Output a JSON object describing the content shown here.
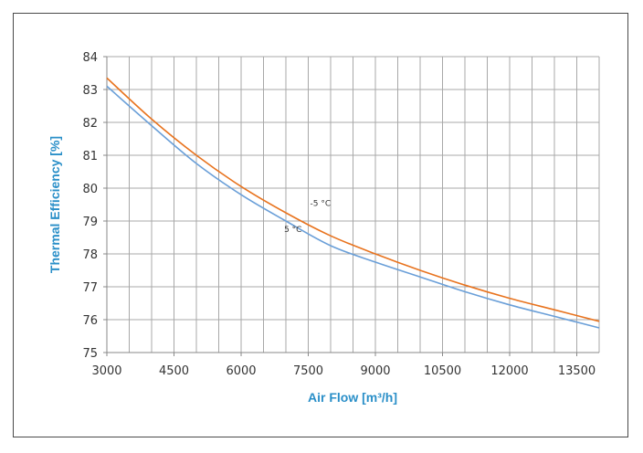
{
  "chart_data": {
    "type": "line",
    "title": "",
    "xlabel": "Air Flow [m³/h]",
    "ylabel": "Thermal Efficiency [%]",
    "xlim": [
      3000,
      14000
    ],
    "ylim": [
      75,
      84
    ],
    "x_ticks": [
      "3000",
      "4500",
      "6000",
      "7500",
      "9000",
      "10500",
      "12000",
      "13500"
    ],
    "y_ticks": [
      "75",
      "76",
      "77",
      "78",
      "79",
      "80",
      "81",
      "82",
      "83",
      "84"
    ],
    "grid": true,
    "series": [
      {
        "name": "-5 °C",
        "color": "#e8731e",
        "x": [
          3000,
          4000,
          5000,
          6000,
          7000,
          8000,
          9000,
          10000,
          11000,
          12000,
          13000,
          14000
        ],
        "y": [
          83.35,
          82.1,
          81.0,
          80.05,
          79.25,
          78.55,
          78.0,
          77.5,
          77.05,
          76.65,
          76.3,
          75.95
        ]
      },
      {
        "name": "5 °C",
        "color": "#6a9fd8",
        "x": [
          3000,
          4000,
          5000,
          6000,
          7000,
          8000,
          9000,
          10000,
          11000,
          12000,
          13000,
          14000
        ],
        "y": [
          83.1,
          81.9,
          80.75,
          79.8,
          79.0,
          78.25,
          77.75,
          77.3,
          76.85,
          76.45,
          76.1,
          75.75
        ]
      }
    ]
  }
}
